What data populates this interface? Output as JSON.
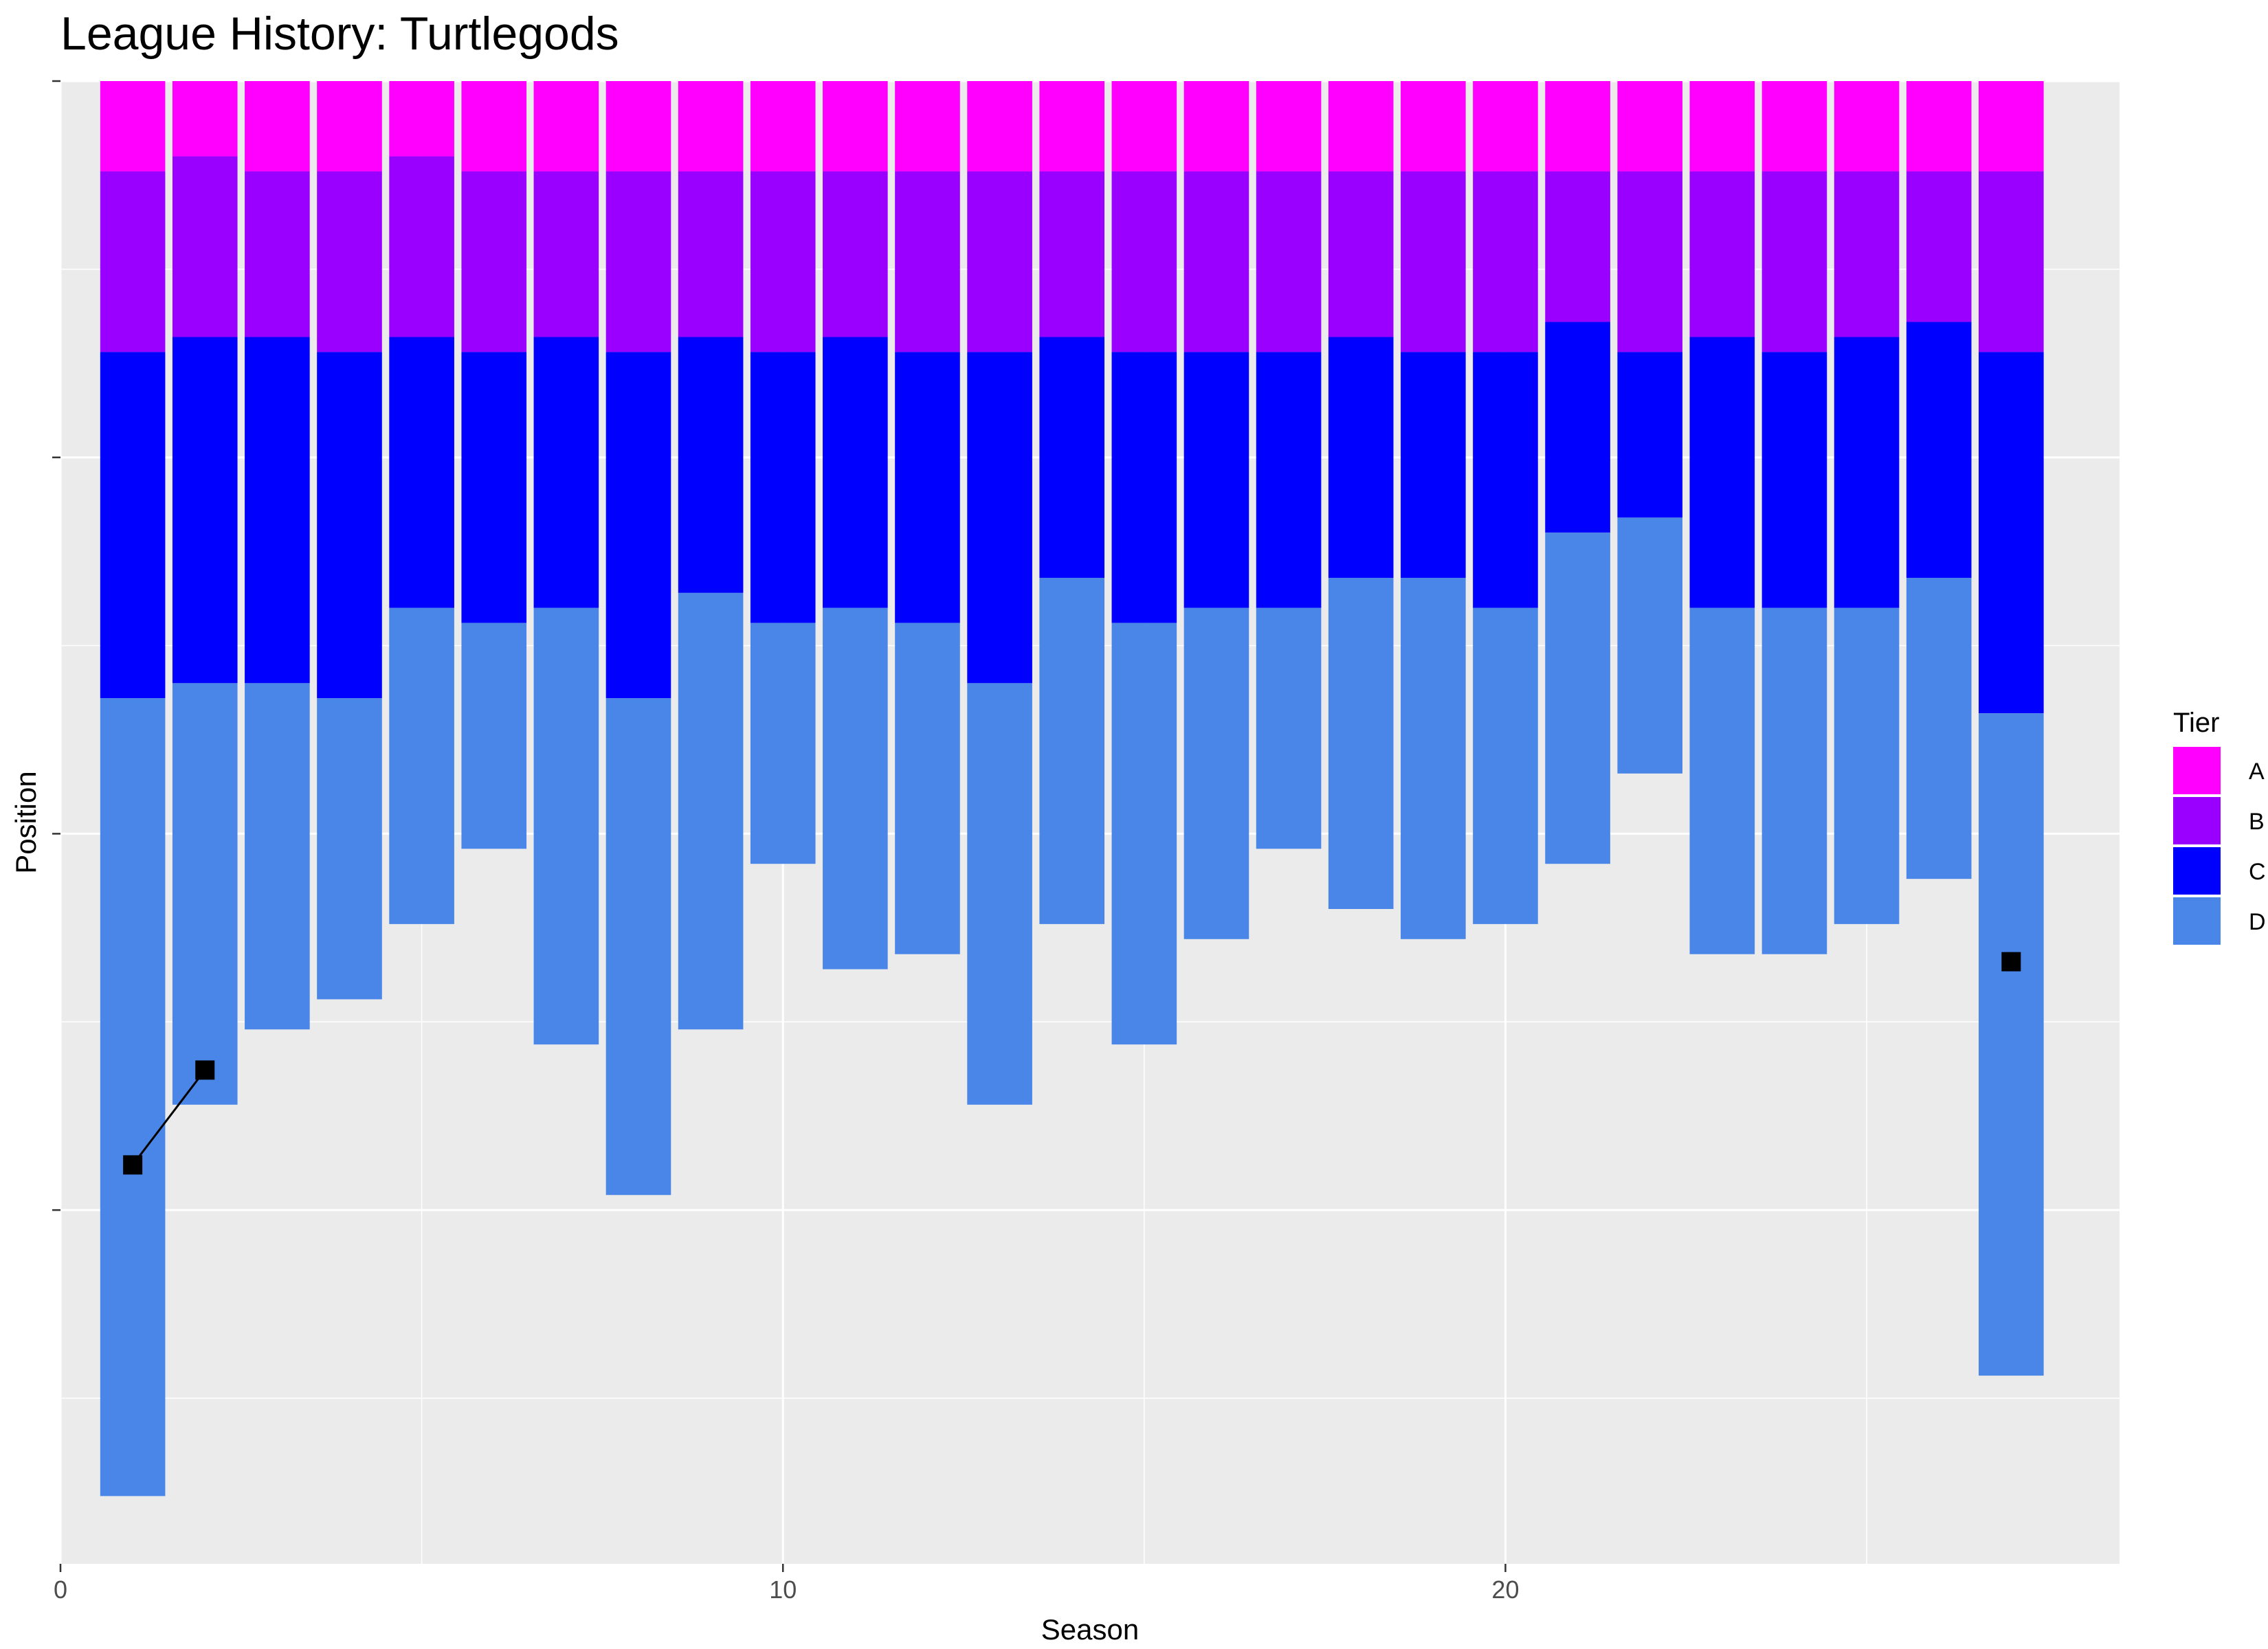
{
  "title": "League History: Turtlegods",
  "chart_data": {
    "type": "bar",
    "title": "League History: Turtlegods",
    "xlabel": "Season",
    "ylabel": "Position",
    "xlim": [
      0,
      28.5
    ],
    "ylim": [
      98.5,
      0
    ],
    "x_ticks": [
      0,
      10,
      20
    ],
    "y_ticks": [
      0,
      25,
      50,
      75
    ],
    "y_tick_labels_visible": false,
    "grid": true,
    "legend": {
      "title": "Tier",
      "position": "right",
      "entries": [
        {
          "label": "A",
          "color": "#FF00FF"
        },
        {
          "label": "B",
          "color": "#9900FF"
        },
        {
          "label": "C",
          "color": "#0000FF"
        },
        {
          "label": "D",
          "color": "#4A86E8"
        }
      ]
    },
    "stacked_bars": [
      {
        "season": 1,
        "tier_bounds": [
          6,
          18,
          41,
          94
        ]
      },
      {
        "season": 2,
        "tier_bounds": [
          5,
          17,
          40,
          68
        ]
      },
      {
        "season": 3,
        "tier_bounds": [
          6,
          17,
          40,
          63
        ]
      },
      {
        "season": 4,
        "tier_bounds": [
          6,
          18,
          41,
          61
        ]
      },
      {
        "season": 5,
        "tier_bounds": [
          5,
          17,
          35,
          56
        ]
      },
      {
        "season": 6,
        "tier_bounds": [
          6,
          18,
          36,
          51
        ]
      },
      {
        "season": 7,
        "tier_bounds": [
          6,
          17,
          35,
          64
        ]
      },
      {
        "season": 8,
        "tier_bounds": [
          6,
          18,
          41,
          74
        ]
      },
      {
        "season": 9,
        "tier_bounds": [
          6,
          17,
          34,
          63
        ]
      },
      {
        "season": 10,
        "tier_bounds": [
          6,
          18,
          36,
          52
        ]
      },
      {
        "season": 11,
        "tier_bounds": [
          6,
          17,
          35,
          59
        ]
      },
      {
        "season": 12,
        "tier_bounds": [
          6,
          18,
          36,
          58
        ]
      },
      {
        "season": 13,
        "tier_bounds": [
          6,
          18,
          40,
          68
        ]
      },
      {
        "season": 14,
        "tier_bounds": [
          6,
          17,
          33,
          56
        ]
      },
      {
        "season": 15,
        "tier_bounds": [
          6,
          18,
          36,
          64
        ]
      },
      {
        "season": 16,
        "tier_bounds": [
          6,
          18,
          35,
          57
        ]
      },
      {
        "season": 17,
        "tier_bounds": [
          6,
          18,
          35,
          51
        ]
      },
      {
        "season": 18,
        "tier_bounds": [
          6,
          17,
          33,
          55
        ]
      },
      {
        "season": 19,
        "tier_bounds": [
          6,
          18,
          33,
          57
        ]
      },
      {
        "season": 20,
        "tier_bounds": [
          6,
          18,
          35,
          56
        ]
      },
      {
        "season": 21,
        "tier_bounds": [
          6,
          16,
          30,
          52
        ]
      },
      {
        "season": 22,
        "tier_bounds": [
          6,
          18,
          29,
          46
        ]
      },
      {
        "season": 23,
        "tier_bounds": [
          6,
          17,
          35,
          58
        ]
      },
      {
        "season": 24,
        "tier_bounds": [
          6,
          18,
          35,
          58
        ]
      },
      {
        "season": 25,
        "tier_bounds": [
          6,
          17,
          35,
          56
        ]
      },
      {
        "season": 26,
        "tier_bounds": [
          6,
          16,
          33,
          53
        ]
      },
      {
        "season": 27,
        "tier_bounds": [
          6,
          18,
          42,
          86
        ]
      }
    ],
    "position_series": [
      {
        "season": 1,
        "position": 72.0
      },
      {
        "season": 2,
        "position": 65.7
      },
      {
        "season": 27,
        "position": 58.5
      }
    ],
    "position_line_segments": [
      [
        1,
        2
      ]
    ],
    "colors": {
      "panel": "#EBEBEB",
      "grid": "#FFFFFF",
      "marker": "#000000"
    }
  }
}
